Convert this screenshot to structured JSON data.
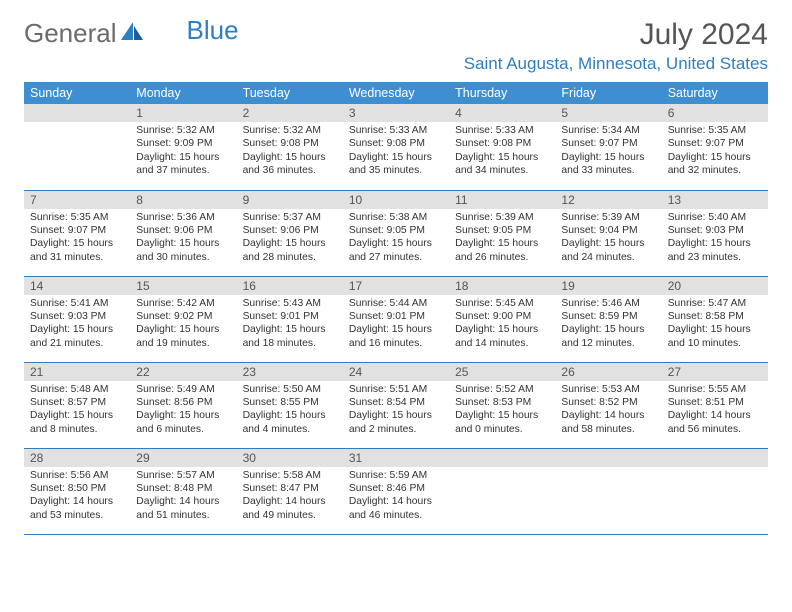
{
  "brand": {
    "part1": "General",
    "part2": "Blue"
  },
  "title": "July 2024",
  "location": "Saint Augusta, Minnesota, United States",
  "colors": {
    "header_bg": "#3d8fd1",
    "accent": "#2f7ec2",
    "daynum_bg": "#e1e1e1",
    "text": "#333333",
    "muted": "#6b6b6b"
  },
  "dow": [
    "Sunday",
    "Monday",
    "Tuesday",
    "Wednesday",
    "Thursday",
    "Friday",
    "Saturday"
  ],
  "weeks": [
    [
      null,
      {
        "n": "1",
        "sr": "5:32 AM",
        "ss": "9:09 PM",
        "dl": "15 hours and 37 minutes."
      },
      {
        "n": "2",
        "sr": "5:32 AM",
        "ss": "9:08 PM",
        "dl": "15 hours and 36 minutes."
      },
      {
        "n": "3",
        "sr": "5:33 AM",
        "ss": "9:08 PM",
        "dl": "15 hours and 35 minutes."
      },
      {
        "n": "4",
        "sr": "5:33 AM",
        "ss": "9:08 PM",
        "dl": "15 hours and 34 minutes."
      },
      {
        "n": "5",
        "sr": "5:34 AM",
        "ss": "9:07 PM",
        "dl": "15 hours and 33 minutes."
      },
      {
        "n": "6",
        "sr": "5:35 AM",
        "ss": "9:07 PM",
        "dl": "15 hours and 32 minutes."
      }
    ],
    [
      {
        "n": "7",
        "sr": "5:35 AM",
        "ss": "9:07 PM",
        "dl": "15 hours and 31 minutes."
      },
      {
        "n": "8",
        "sr": "5:36 AM",
        "ss": "9:06 PM",
        "dl": "15 hours and 30 minutes."
      },
      {
        "n": "9",
        "sr": "5:37 AM",
        "ss": "9:06 PM",
        "dl": "15 hours and 28 minutes."
      },
      {
        "n": "10",
        "sr": "5:38 AM",
        "ss": "9:05 PM",
        "dl": "15 hours and 27 minutes."
      },
      {
        "n": "11",
        "sr": "5:39 AM",
        "ss": "9:05 PM",
        "dl": "15 hours and 26 minutes."
      },
      {
        "n": "12",
        "sr": "5:39 AM",
        "ss": "9:04 PM",
        "dl": "15 hours and 24 minutes."
      },
      {
        "n": "13",
        "sr": "5:40 AM",
        "ss": "9:03 PM",
        "dl": "15 hours and 23 minutes."
      }
    ],
    [
      {
        "n": "14",
        "sr": "5:41 AM",
        "ss": "9:03 PM",
        "dl": "15 hours and 21 minutes."
      },
      {
        "n": "15",
        "sr": "5:42 AM",
        "ss": "9:02 PM",
        "dl": "15 hours and 19 minutes."
      },
      {
        "n": "16",
        "sr": "5:43 AM",
        "ss": "9:01 PM",
        "dl": "15 hours and 18 minutes."
      },
      {
        "n": "17",
        "sr": "5:44 AM",
        "ss": "9:01 PM",
        "dl": "15 hours and 16 minutes."
      },
      {
        "n": "18",
        "sr": "5:45 AM",
        "ss": "9:00 PM",
        "dl": "15 hours and 14 minutes."
      },
      {
        "n": "19",
        "sr": "5:46 AM",
        "ss": "8:59 PM",
        "dl": "15 hours and 12 minutes."
      },
      {
        "n": "20",
        "sr": "5:47 AM",
        "ss": "8:58 PM",
        "dl": "15 hours and 10 minutes."
      }
    ],
    [
      {
        "n": "21",
        "sr": "5:48 AM",
        "ss": "8:57 PM",
        "dl": "15 hours and 8 minutes."
      },
      {
        "n": "22",
        "sr": "5:49 AM",
        "ss": "8:56 PM",
        "dl": "15 hours and 6 minutes."
      },
      {
        "n": "23",
        "sr": "5:50 AM",
        "ss": "8:55 PM",
        "dl": "15 hours and 4 minutes."
      },
      {
        "n": "24",
        "sr": "5:51 AM",
        "ss": "8:54 PM",
        "dl": "15 hours and 2 minutes."
      },
      {
        "n": "25",
        "sr": "5:52 AM",
        "ss": "8:53 PM",
        "dl": "15 hours and 0 minutes."
      },
      {
        "n": "26",
        "sr": "5:53 AM",
        "ss": "8:52 PM",
        "dl": "14 hours and 58 minutes."
      },
      {
        "n": "27",
        "sr": "5:55 AM",
        "ss": "8:51 PM",
        "dl": "14 hours and 56 minutes."
      }
    ],
    [
      {
        "n": "28",
        "sr": "5:56 AM",
        "ss": "8:50 PM",
        "dl": "14 hours and 53 minutes."
      },
      {
        "n": "29",
        "sr": "5:57 AM",
        "ss": "8:48 PM",
        "dl": "14 hours and 51 minutes."
      },
      {
        "n": "30",
        "sr": "5:58 AM",
        "ss": "8:47 PM",
        "dl": "14 hours and 49 minutes."
      },
      {
        "n": "31",
        "sr": "5:59 AM",
        "ss": "8:46 PM",
        "dl": "14 hours and 46 minutes."
      },
      null,
      null,
      null
    ]
  ],
  "labels": {
    "sunrise": "Sunrise:",
    "sunset": "Sunset:",
    "daylight": "Daylight:"
  }
}
